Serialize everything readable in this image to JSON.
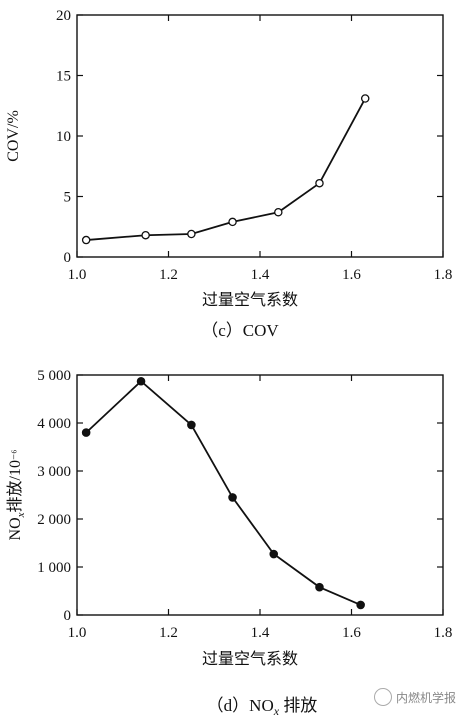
{
  "chart_data": [
    {
      "type": "line",
      "title": "",
      "caption": "（c）COV",
      "xlabel": "过量空气系数",
      "ylabel": "COV/%",
      "xlim": [
        1.0,
        1.8
      ],
      "ylim": [
        0,
        20
      ],
      "xticks": [
        1.0,
        1.2,
        1.4,
        1.6,
        1.8
      ],
      "xtick_labels": [
        "1.0",
        "1.2",
        "1.4",
        "1.6",
        "1.8"
      ],
      "yticks": [
        0,
        5,
        10,
        15,
        20
      ],
      "ytick_labels": [
        "0",
        "5",
        "10",
        "15",
        "20"
      ],
      "marker": "open-circle",
      "grid": false,
      "series": [
        {
          "x": [
            1.02,
            1.15,
            1.25,
            1.34,
            1.44,
            1.53,
            1.63
          ],
          "y": [
            1.4,
            1.8,
            1.9,
            2.9,
            3.7,
            6.1,
            13.1
          ]
        }
      ]
    },
    {
      "type": "line",
      "title": "",
      "caption": "（d）NOx 排放",
      "xlabel": "过量空气系数",
      "ylabel": "NOx排放/10⁻⁶",
      "xlim": [
        1.0,
        1.8
      ],
      "ylim": [
        0,
        5000
      ],
      "xticks": [
        1.0,
        1.2,
        1.4,
        1.6,
        1.8
      ],
      "xtick_labels": [
        "1.0",
        "1.2",
        "1.4",
        "1.6",
        "1.8"
      ],
      "yticks": [
        0,
        1000,
        2000,
        3000,
        4000,
        5000
      ],
      "ytick_labels": [
        "0",
        "1 000",
        "2 000",
        "3 000",
        "4 000",
        "5 000"
      ],
      "marker": "filled-circle",
      "grid": false,
      "series": [
        {
          "x": [
            1.02,
            1.14,
            1.25,
            1.34,
            1.43,
            1.53,
            1.62
          ],
          "y": [
            3800,
            4870,
            3960,
            2450,
            1270,
            580,
            210
          ]
        }
      ]
    }
  ],
  "watermark": {
    "text": "内燃机学报"
  }
}
